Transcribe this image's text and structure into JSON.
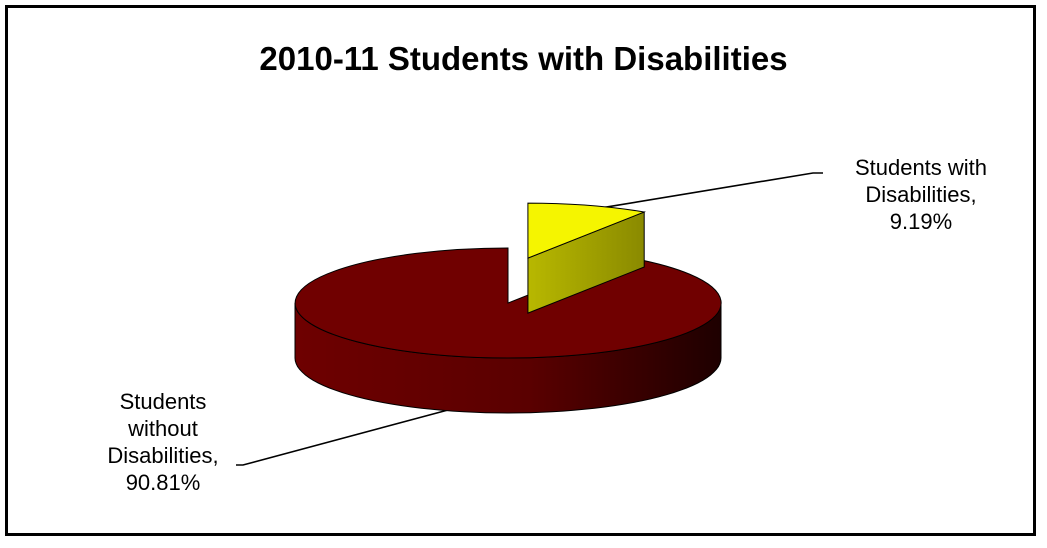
{
  "chart_data": {
    "type": "pie",
    "title": "2010-11 Students with Disabilities",
    "slices": [
      {
        "name": "Students with Disabilities",
        "value": 9.19,
        "label_lines": [
          "Students with",
          "Disabilities,",
          "9.19%"
        ],
        "color": "#f5f500",
        "exploded": true
      },
      {
        "name": "Students without Disabilities",
        "value": 90.81,
        "label_lines": [
          "Students",
          "without",
          "Disabilities,",
          "90.81%"
        ],
        "color": "#700000",
        "exploded": false
      }
    ],
    "style": "3d",
    "legend": "none"
  }
}
